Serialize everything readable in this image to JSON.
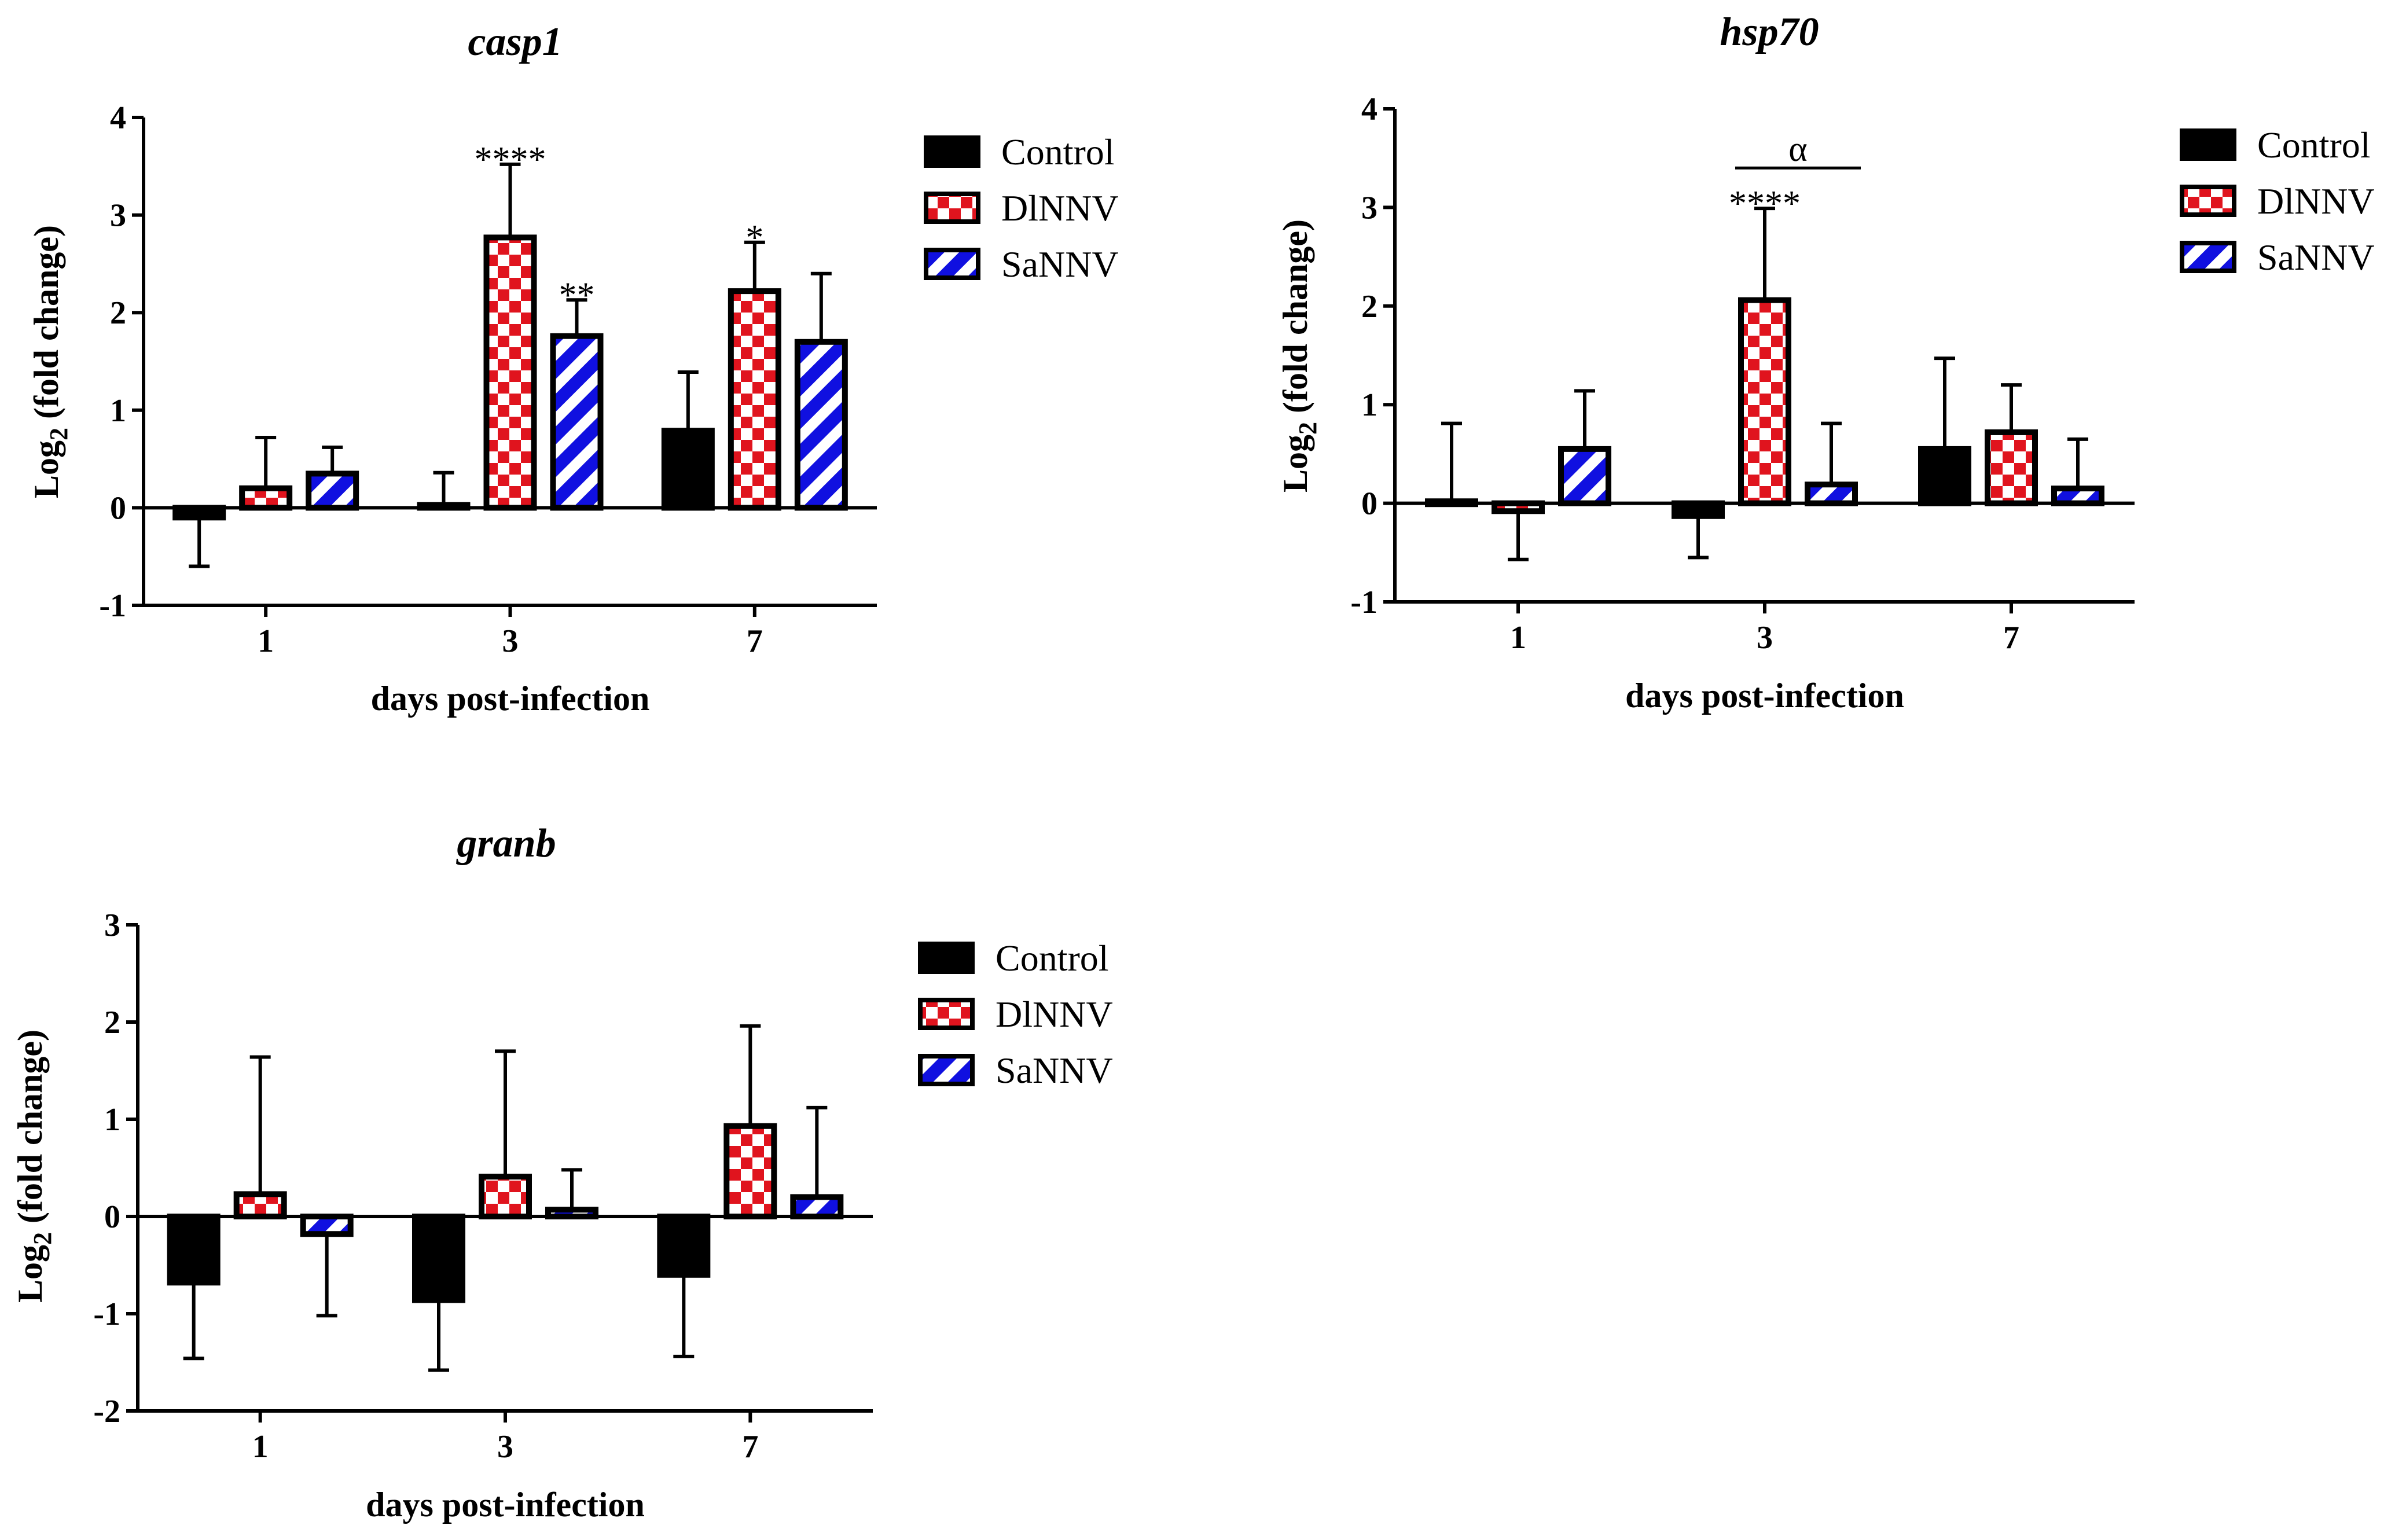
{
  "colors": {
    "control": "#000000",
    "dlnnv_check": "#e0141e",
    "sannv_stripe": "#1010e0",
    "axis": "#000000"
  },
  "legend_labels": [
    "Control",
    "DlNNV",
    "SaNNV"
  ],
  "chart_data": [
    {
      "type": "bar",
      "title": "casp1",
      "xlabel": "days post-infection",
      "ylabel_main": "Log",
      "ylabel_sub": "2",
      "ylabel_rest": " (fold change)",
      "ylim": [
        -1,
        4
      ],
      "yticks": [
        "-1",
        "0",
        "1",
        "2",
        "3",
        "4"
      ],
      "categories": [
        "1",
        "3",
        "7"
      ],
      "series": [
        {
          "name": "Control",
          "values": [
            -0.1,
            0.03,
            0.79
          ],
          "errors": [
            0.5,
            0.33,
            0.6
          ]
        },
        {
          "name": "DlNNV",
          "values": [
            0.2,
            2.77,
            2.22
          ],
          "errors": [
            0.52,
            0.75,
            0.5
          ]
        },
        {
          "name": "SaNNV",
          "values": [
            0.35,
            1.76,
            1.7
          ],
          "errors": [
            0.27,
            0.37,
            0.7
          ]
        }
      ],
      "annotations": [
        {
          "text": "****",
          "category": 1,
          "series": 1
        },
        {
          "text": "**",
          "category": 1,
          "series": 2
        },
        {
          "text": "*",
          "category": 2,
          "series": 1
        }
      ],
      "bracket": null
    },
    {
      "type": "bar",
      "title": "hsp70",
      "xlabel": "days post-infection",
      "ylabel_main": "Log",
      "ylabel_sub": "2",
      "ylabel_rest": " (fold change)",
      "ylim": [
        -1,
        4
      ],
      "yticks": [
        "-1",
        "0",
        "1",
        "2",
        "3",
        "4"
      ],
      "categories": [
        "1",
        "3",
        "7"
      ],
      "series": [
        {
          "name": "Control",
          "values": [
            0.02,
            -0.13,
            0.55
          ],
          "errors": [
            0.79,
            0.42,
            0.92
          ]
        },
        {
          "name": "DlNNV",
          "values": [
            -0.08,
            2.06,
            0.72
          ],
          "errors": [
            0.49,
            0.93,
            0.48
          ]
        },
        {
          "name": "SaNNV",
          "values": [
            0.55,
            0.19,
            0.15
          ],
          "errors": [
            0.59,
            0.62,
            0.5
          ]
        }
      ],
      "annotations": [
        {
          "text": "****",
          "category": 1,
          "series": 1
        }
      ],
      "bracket": {
        "text": "α",
        "category": 1,
        "from_series": 1,
        "to_series": 2,
        "y": 3.4
      }
    },
    {
      "type": "bar",
      "title": "granb",
      "xlabel": "days post-infection",
      "ylabel_main": "Log",
      "ylabel_sub": "2",
      "ylabel_rest": " (fold change)",
      "ylim": [
        -2,
        3
      ],
      "yticks": [
        "-2",
        "-1",
        "0",
        "1",
        "2",
        "3"
      ],
      "categories": [
        "1",
        "3",
        "7"
      ],
      "series": [
        {
          "name": "Control",
          "values": [
            -0.68,
            -0.86,
            -0.6
          ],
          "errors": [
            0.78,
            0.72,
            0.84
          ]
        },
        {
          "name": "DlNNV",
          "values": [
            0.23,
            0.41,
            0.93
          ],
          "errors": [
            1.41,
            1.29,
            1.03
          ]
        },
        {
          "name": "SaNNV",
          "values": [
            -0.18,
            0.07,
            0.2
          ],
          "errors": [
            0.84,
            0.41,
            0.92
          ]
        }
      ],
      "annotations": [],
      "bracket": null
    }
  ]
}
